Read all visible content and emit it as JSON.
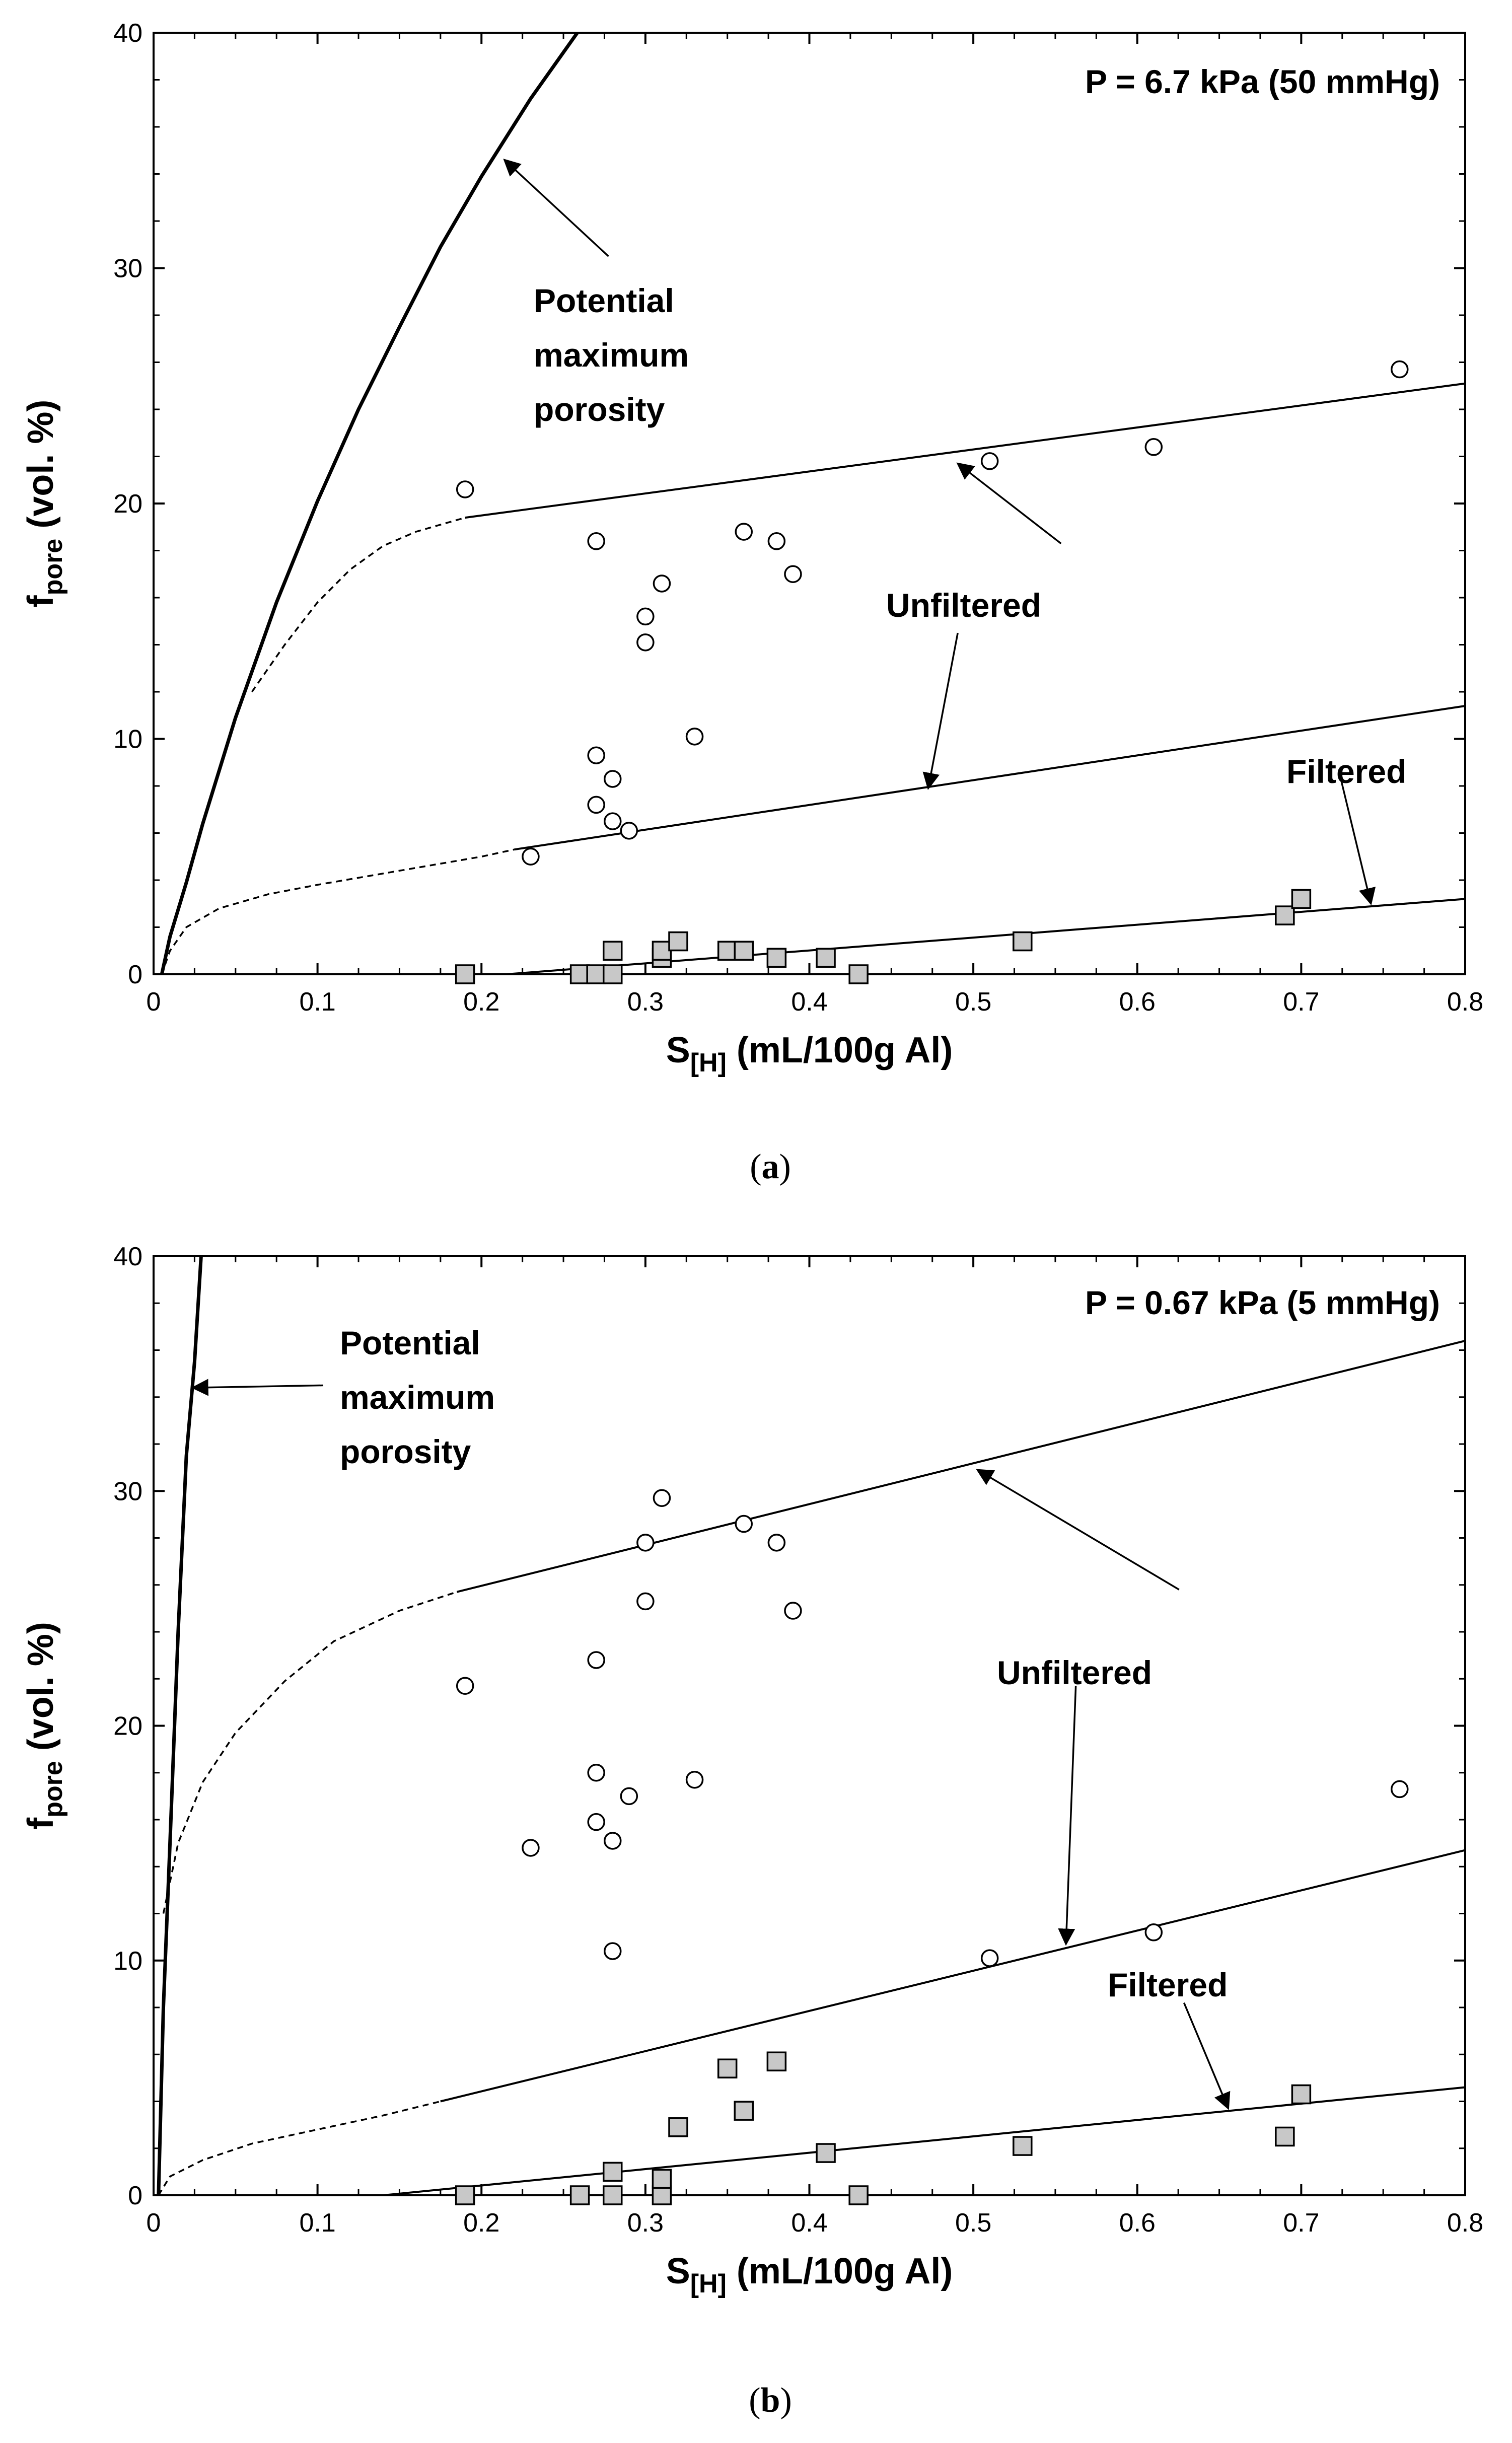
{
  "chart_data": [
    {
      "id": "a",
      "type": "scatter",
      "panel_label": "a",
      "xlabel_main": "S",
      "xlabel_sub": "[H]",
      "xlabel_rest": " (mL/100g Al)",
      "ylabel_main": "f",
      "ylabel_sub": "pore",
      "ylabel_rest": " (vol. %)",
      "xlim": [
        0,
        0.8
      ],
      "ylim": [
        0,
        40
      ],
      "xticks": [
        "0",
        "0.1",
        "0.2",
        "0.3",
        "0.4",
        "0.5",
        "0.6",
        "0.7",
        "0.8"
      ],
      "yticks": [
        "0",
        "10",
        "20",
        "30",
        "40"
      ],
      "grid": false,
      "annotations": {
        "pressure": "P = 6.7 kPa (50 mmHg)",
        "potential": [
          "Potential",
          "maximum",
          "porosity"
        ],
        "unfiltered": "Unfiltered",
        "filtered": "Filtered"
      },
      "series": [
        {
          "marker": "circle",
          "points": [
            [
              0.19,
              20.6
            ],
            [
              0.27,
              18.4
            ],
            [
              0.36,
              18.8
            ],
            [
              0.38,
              18.4
            ],
            [
              0.39,
              17.0
            ],
            [
              0.31,
              16.6
            ],
            [
              0.3,
              15.2
            ],
            [
              0.3,
              14.1
            ],
            [
              0.33,
              10.1
            ],
            [
              0.27,
              9.3
            ],
            [
              0.28,
              8.3
            ],
            [
              0.27,
              7.2
            ],
            [
              0.28,
              6.5
            ],
            [
              0.29,
              6.1
            ],
            [
              0.23,
              5.0
            ],
            [
              0.51,
              21.8
            ],
            [
              0.61,
              22.4
            ],
            [
              0.76,
              25.7
            ]
          ]
        },
        {
          "marker": "square",
          "points": [
            [
              0.19,
              0.0
            ],
            [
              0.26,
              0.0
            ],
            [
              0.27,
              0.0
            ],
            [
              0.28,
              0.0
            ],
            [
              0.28,
              1.0
            ],
            [
              0.31,
              0.7
            ],
            [
              0.31,
              1.0
            ],
            [
              0.32,
              1.4
            ],
            [
              0.35,
              1.0
            ],
            [
              0.36,
              1.0
            ],
            [
              0.38,
              0.7
            ],
            [
              0.41,
              0.7
            ],
            [
              0.43,
              0.0
            ],
            [
              0.53,
              1.4
            ],
            [
              0.69,
              2.5
            ],
            [
              0.7,
              3.2
            ]
          ]
        }
      ],
      "curves": {
        "max_porosity": [
          [
            0.005,
            0
          ],
          [
            0.01,
            1.6
          ],
          [
            0.02,
            3.9
          ],
          [
            0.03,
            6.4
          ],
          [
            0.05,
            10.9
          ],
          [
            0.075,
            15.8
          ],
          [
            0.1,
            20.1
          ],
          [
            0.125,
            24.0
          ],
          [
            0.15,
            27.5
          ],
          [
            0.175,
            30.9
          ],
          [
            0.2,
            33.9
          ],
          [
            0.23,
            37.2
          ],
          [
            0.2585,
            40.0
          ]
        ],
        "unfiltered_upper_dashed": [
          [
            0.06,
            12.0
          ],
          [
            0.08,
            14.0
          ],
          [
            0.1,
            15.8
          ],
          [
            0.12,
            17.2
          ],
          [
            0.14,
            18.2
          ],
          [
            0.16,
            18.8
          ],
          [
            0.18,
            19.2
          ],
          [
            0.19,
            19.4
          ]
        ],
        "unfiltered_upper": [
          [
            0.19,
            19.4
          ],
          [
            0.8,
            25.1
          ]
        ],
        "unfiltered_lower_dashed": [
          [
            0.005,
            0
          ],
          [
            0.01,
            1.0
          ],
          [
            0.02,
            2.0
          ],
          [
            0.04,
            2.8
          ],
          [
            0.07,
            3.4
          ],
          [
            0.1,
            3.8
          ],
          [
            0.15,
            4.4
          ],
          [
            0.2,
            5.0
          ],
          [
            0.22,
            5.3
          ]
        ],
        "unfiltered_lower": [
          [
            0.22,
            5.3
          ],
          [
            0.8,
            11.4
          ]
        ],
        "filtered": [
          [
            0.215,
            0.0
          ],
          [
            0.8,
            3.2
          ]
        ]
      },
      "arrows": [
        {
          "from": [
            0.2775,
            30.5
          ],
          "to": [
            0.214,
            34.6
          ]
        },
        {
          "from": [
            0.5535,
            18.3
          ],
          "to": [
            0.4905,
            21.7
          ]
        },
        {
          "from": [
            0.4905,
            14.5
          ],
          "to": [
            0.4725,
            7.9
          ]
        },
        {
          "from": [
            0.7245,
            8.2
          ],
          "to": [
            0.7425,
            3.0
          ]
        }
      ]
    },
    {
      "id": "b",
      "type": "scatter",
      "panel_label": "b",
      "xlabel_main": "S",
      "xlabel_sub": "[H]",
      "xlabel_rest": " (mL/100g Al)",
      "ylabel_main": "f",
      "ylabel_sub": "pore",
      "ylabel_rest": " (vol. %)",
      "xlim": [
        0,
        0.8
      ],
      "ylim": [
        0,
        40
      ],
      "xticks": [
        "0",
        "0.1",
        "0.2",
        "0.3",
        "0.4",
        "0.5",
        "0.6",
        "0.7",
        "0.8"
      ],
      "yticks": [
        "0",
        "10",
        "20",
        "30",
        "40"
      ],
      "grid": false,
      "annotations": {
        "pressure": "P = 0.67 kPa (5 mmHg)",
        "potential": [
          "Potential",
          "maximum",
          "porosity"
        ],
        "unfiltered": "Unfiltered",
        "filtered": "Filtered"
      },
      "series": [
        {
          "marker": "circle",
          "points": [
            [
              0.19,
              21.7
            ],
            [
              0.23,
              14.8
            ],
            [
              0.27,
              22.8
            ],
            [
              0.27,
              18.0
            ],
            [
              0.27,
              15.9
            ],
            [
              0.28,
              15.1
            ],
            [
              0.28,
              10.4
            ],
            [
              0.29,
              17.0
            ],
            [
              0.3,
              27.8
            ],
            [
              0.3,
              25.3
            ],
            [
              0.31,
              29.7
            ],
            [
              0.33,
              17.7
            ],
            [
              0.36,
              28.6
            ],
            [
              0.38,
              27.8
            ],
            [
              0.39,
              24.9
            ],
            [
              0.51,
              10.1
            ],
            [
              0.61,
              11.2
            ],
            [
              0.76,
              17.3
            ]
          ]
        },
        {
          "marker": "square",
          "points": [
            [
              0.19,
              0.0
            ],
            [
              0.26,
              0.0
            ],
            [
              0.28,
              0.0
            ],
            [
              0.28,
              1.0
            ],
            [
              0.31,
              0.0
            ],
            [
              0.31,
              0.7
            ],
            [
              0.32,
              2.9
            ],
            [
              0.35,
              5.4
            ],
            [
              0.36,
              3.6
            ],
            [
              0.38,
              5.7
            ],
            [
              0.41,
              1.8
            ],
            [
              0.43,
              0.0
            ],
            [
              0.53,
              2.1
            ],
            [
              0.69,
              2.5
            ],
            [
              0.7,
              4.3
            ]
          ]
        }
      ],
      "curves": {
        "max_porosity": [
          [
            0.003,
            0
          ],
          [
            0.006,
            8.0
          ],
          [
            0.01,
            15.0
          ],
          [
            0.015,
            24.0
          ],
          [
            0.02,
            31.5
          ],
          [
            0.025,
            35.5
          ],
          [
            0.029,
            40.0
          ]
        ],
        "unfiltered_upper_dashed": [
          [
            0.006,
            12.0
          ],
          [
            0.015,
            15.0
          ],
          [
            0.03,
            17.6
          ],
          [
            0.05,
            19.7
          ],
          [
            0.08,
            21.9
          ],
          [
            0.11,
            23.6
          ],
          [
            0.15,
            24.9
          ],
          [
            0.185,
            25.7
          ]
        ],
        "unfiltered_upper": [
          [
            0.185,
            25.7
          ],
          [
            0.8,
            36.4
          ]
        ],
        "unfiltered_lower_dashed": [
          [
            0.003,
            0
          ],
          [
            0.01,
            0.8
          ],
          [
            0.03,
            1.5
          ],
          [
            0.06,
            2.2
          ],
          [
            0.1,
            2.8
          ],
          [
            0.14,
            3.4
          ],
          [
            0.175,
            4.0
          ]
        ],
        "unfiltered_lower": [
          [
            0.175,
            4.0
          ],
          [
            0.8,
            14.7
          ]
        ],
        "filtered": [
          [
            0.14,
            0.0
          ],
          [
            0.8,
            4.6
          ]
        ]
      },
      "arrows": [
        {
          "from": [
            0.1035,
            34.5
          ],
          "to": [
            0.024,
            34.4
          ]
        },
        {
          "from": [
            0.6255,
            25.8
          ],
          "to": [
            0.5025,
            30.9
          ]
        },
        {
          "from": [
            0.5625,
            21.7
          ],
          "to": [
            0.5565,
            10.7
          ]
        },
        {
          "from": [
            0.6285,
            8.2
          ],
          "to": [
            0.6555,
            3.7
          ]
        }
      ]
    }
  ]
}
